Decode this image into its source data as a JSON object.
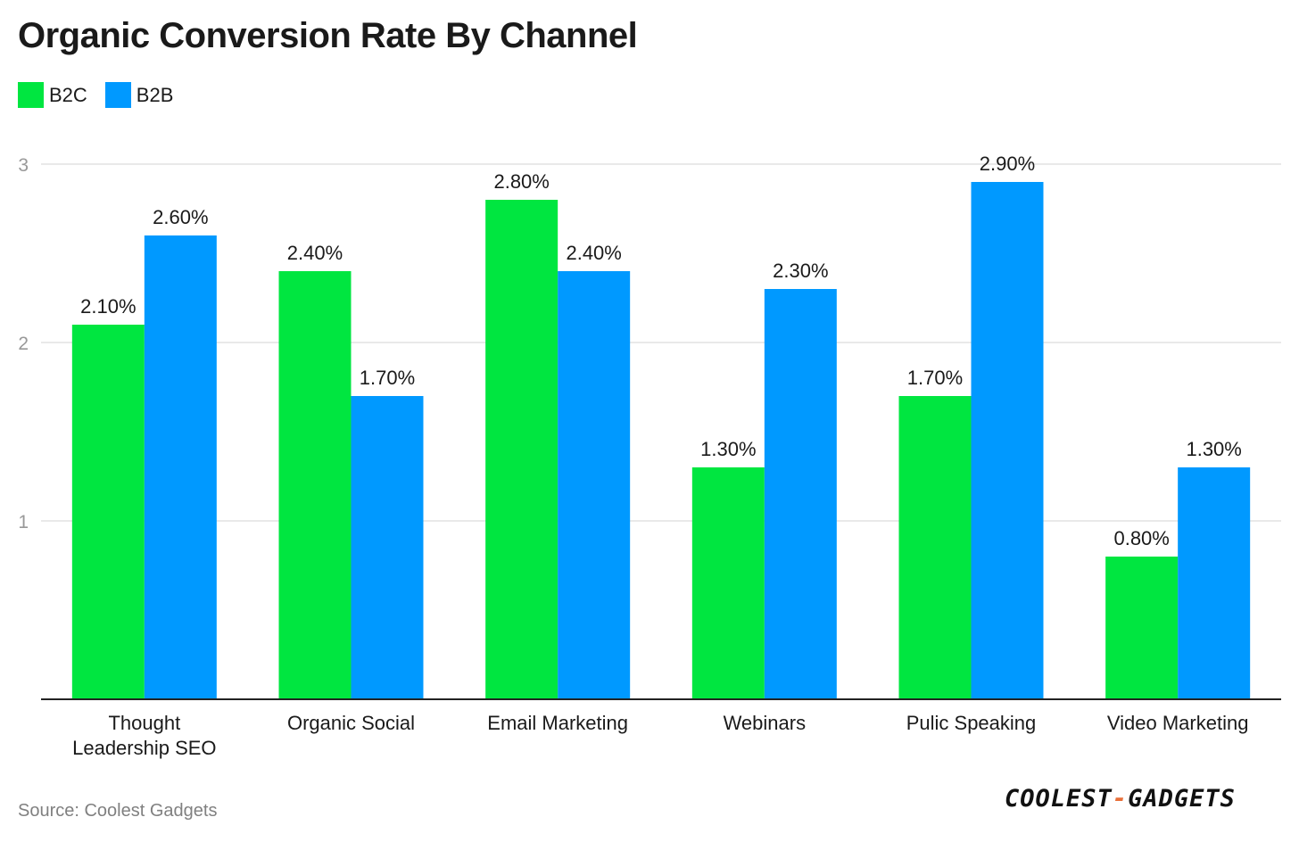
{
  "title": "Organic Conversion Rate By Channel",
  "source": "Source: Coolest Gadgets",
  "logo": {
    "left": "COOLEST",
    "sep": "-",
    "right": "GADGETS"
  },
  "colors": {
    "B2C": "#00e640",
    "B2B": "#0099ff",
    "grid": "#e2e2e2",
    "axis": "#222222"
  },
  "chart_data": {
    "type": "bar",
    "categories": [
      [
        "Thought",
        "Leadership SEO"
      ],
      [
        "Organic Social"
      ],
      [
        "Email Marketing"
      ],
      [
        "Webinars"
      ],
      [
        "Pulic Speaking"
      ],
      [
        "Video Marketing"
      ]
    ],
    "series": [
      {
        "name": "B2C",
        "values": [
          2.1,
          2.4,
          2.8,
          1.3,
          1.7,
          0.8
        ],
        "labels": [
          "2.10%",
          "2.40%",
          "2.80%",
          "1.30%",
          "1.70%",
          "0.80%"
        ]
      },
      {
        "name": "B2B",
        "values": [
          2.6,
          1.7,
          2.4,
          2.3,
          2.9,
          1.3
        ],
        "labels": [
          "2.60%",
          "1.70%",
          "2.40%",
          "2.30%",
          "2.90%",
          "1.30%"
        ]
      }
    ],
    "yticks": [
      "1",
      "2",
      "3"
    ],
    "ylim": [
      0,
      3
    ],
    "grid": true,
    "legend": "top-left"
  }
}
